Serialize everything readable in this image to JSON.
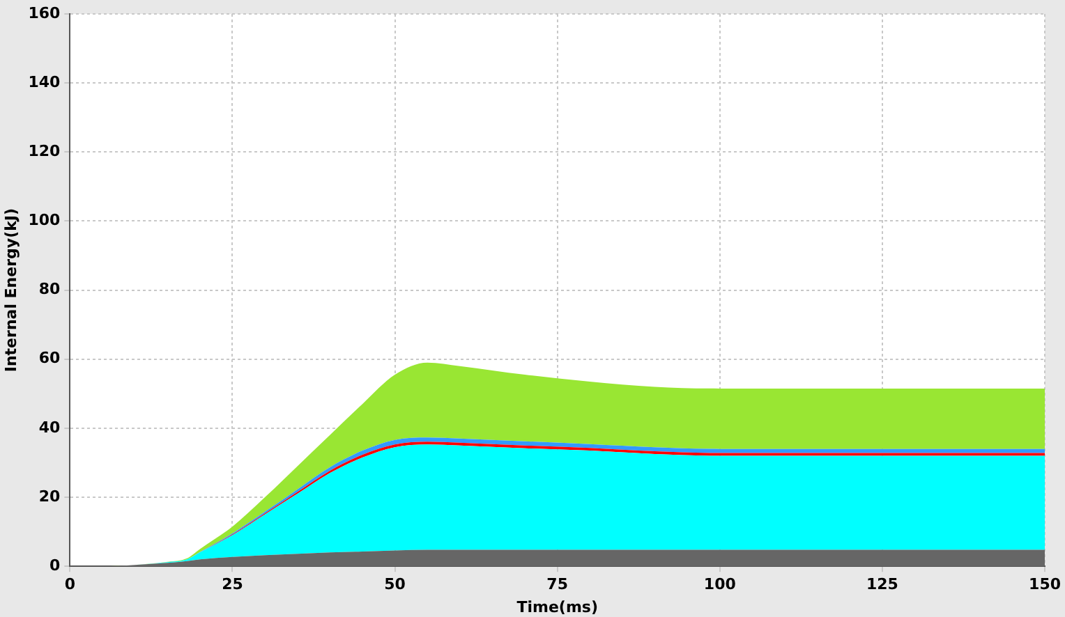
{
  "chart_data": {
    "type": "area",
    "stacked": true,
    "xlabel": "Time(ms)",
    "ylabel": "Internal Energy(kJ)",
    "x": [
      0,
      5,
      10,
      15,
      18,
      20,
      25,
      30,
      35,
      40,
      45,
      50,
      55,
      60,
      70,
      80,
      90,
      100,
      125,
      150
    ],
    "xlim": [
      0,
      150
    ],
    "xticks": [
      0,
      25,
      50,
      75,
      100,
      125,
      150
    ],
    "ylim": [
      0,
      160
    ],
    "yticks": [
      0,
      20,
      40,
      60,
      80,
      100,
      120,
      140,
      160
    ],
    "grid": true,
    "legend": false,
    "series": [
      {
        "color": "#666666",
        "values": [
          0,
          0,
          0.4,
          1,
          1.5,
          2,
          2.7,
          3.2,
          3.6,
          4,
          4.3,
          4.6,
          4.8,
          4.8,
          4.8,
          4.8,
          4.8,
          4.8,
          4.8,
          4.8
        ]
      },
      {
        "color": "#00ffff",
        "values": [
          0,
          0,
          0,
          0.2,
          0.5,
          2,
          6.3,
          11.8,
          17.4,
          23,
          27.2,
          29.9,
          30.5,
          30.2,
          29.4,
          28.7,
          27.7,
          27.2,
          27.2,
          27.2
        ]
      },
      {
        "color": "#ff0000",
        "values": [
          0,
          0,
          0,
          0,
          0,
          0,
          0.2,
          0.3,
          0.5,
          0.7,
          0.8,
          0.8,
          0.8,
          0.8,
          0.8,
          0.8,
          0.8,
          0.8,
          0.8,
          0.8
        ]
      },
      {
        "color": "#3399ff",
        "values": [
          0,
          0,
          0,
          0,
          0,
          0.1,
          0.3,
          0.5,
          0.8,
          1,
          1.2,
          1.3,
          1.2,
          1.2,
          1.2,
          1.1,
          1.2,
          1.2,
          1.2,
          1.2
        ]
      },
      {
        "color": "#99e633",
        "values": [
          0,
          0,
          0,
          0.1,
          0.3,
          0.9,
          2,
          4.2,
          6.7,
          9.3,
          13.5,
          18.9,
          21.7,
          21,
          19.3,
          18.1,
          17.5,
          17.5,
          17.5,
          17.5
        ]
      }
    ]
  }
}
